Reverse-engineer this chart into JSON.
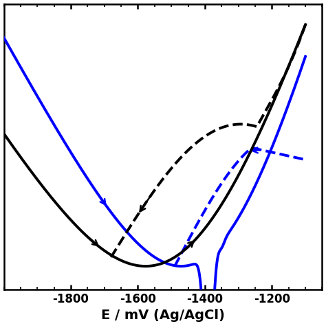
{
  "xlabel": "E / mV (Ag/AgCl)",
  "xlim": [
    -2000,
    -1050
  ],
  "ylim": [
    -0.05,
    1.05
  ],
  "x_ticks": [
    -1800,
    -1600,
    -1400,
    -1200
  ],
  "background_color": "#ffffff",
  "line_color_black": "#000000",
  "line_color_blue": "#0000ff",
  "linewidth": 2.8,
  "tick_fontsize": 12,
  "xlabel_fontsize": 14
}
